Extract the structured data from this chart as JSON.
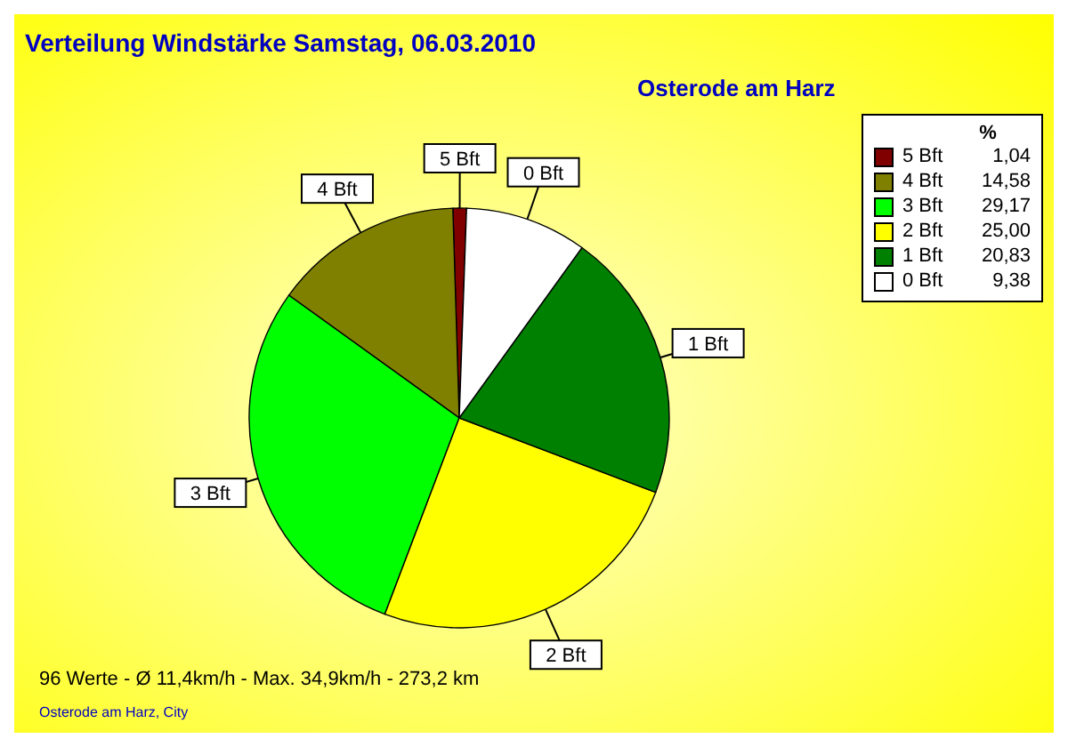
{
  "chart_data": {
    "type": "pie",
    "title": "Verteilung Windstärke  Samstag, 06.03.2010",
    "subtitle": "Osterode am Harz",
    "categories": [
      "5 Bft",
      "4 Bft",
      "3 Bft",
      "2 Bft",
      "1 Bft",
      "0 Bft"
    ],
    "values": [
      1.04,
      14.58,
      29.17,
      25.0,
      20.83,
      9.38
    ],
    "value_labels": [
      "1,04",
      "14,58",
      "29,17",
      "25,00",
      "20,83",
      "9,38"
    ],
    "colors": [
      "#800000",
      "#808000",
      "#00ff00",
      "#ffff00",
      "#008000",
      "#ffffff"
    ],
    "legend": "top right",
    "legend_title": "%",
    "annotations": [
      "96 Werte   -   Ø 11,4km/h  -  Max. 34,9km/h   -   273,2 km",
      "Osterode am Harz, City"
    ]
  }
}
